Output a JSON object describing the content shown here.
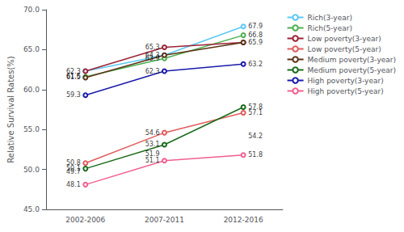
{
  "chart_data": {
    "type": "line",
    "categories": [
      "2002-2006",
      "2007-2011",
      "2012-2016"
    ],
    "series": [
      {
        "name": "Rich(3-year)",
        "color": "#5bc8f5",
        "values": [
          62.3,
          64.3,
          67.9
        ]
      },
      {
        "name": "Rich(5-year)",
        "color": "#4caf50",
        "values": [
          61.6,
          63.9,
          66.8
        ]
      },
      {
        "name": "Low poverty(3-year)",
        "color": "#9b2335",
        "values": [
          62.3,
          65.3,
          65.9
        ]
      },
      {
        "name": "Low poverty(5-year)",
        "color": "#e05c5c",
        "values": [
          50.8,
          54.6,
          57.1
        ]
      },
      {
        "name": "Medium poverty(3-year)",
        "color": "#5c3317",
        "values": [
          61.5,
          64.3,
          65.9
        ]
      },
      {
        "name": "Medium poverty(5-year)",
        "color": "#1a6b1a",
        "values": [
          50.1,
          53.1,
          57.8
        ]
      },
      {
        "name": "High poverty(3-year)",
        "color": "#1a1aaa",
        "values": [
          59.3,
          62.3,
          63.2
        ]
      },
      {
        "name": "High poverty(5-year)",
        "color": "#f06090",
        "values": [
          48.1,
          51.1,
          51.8
        ]
      }
    ],
    "annotations": [
      {
        "x": "2002-2006",
        "y": 62.3,
        "text": "62.3"
      },
      {
        "x": "2002-2006",
        "y": 61.6,
        "text": "61.6"
      },
      {
        "x": "2002-2006",
        "y": 61.5,
        "text": "61.5"
      },
      {
        "x": "2002-2006",
        "y": 59.3,
        "text": "59.3"
      },
      {
        "x": "2002-2006",
        "y": 50.8,
        "text": "50.8"
      },
      {
        "x": "2002-2006",
        "y": 50.1,
        "text": "50.1"
      },
      {
        "x": "2002-2006",
        "y": 49.7,
        "text": "49.7"
      },
      {
        "x": "2002-2006",
        "y": 48.1,
        "text": "48.1"
      },
      {
        "x": "2007-2011",
        "y": 65.3,
        "text": "65.3"
      },
      {
        "x": "2007-2011",
        "y": 64.3,
        "text": "64.3"
      },
      {
        "x": "2007-2011",
        "y": 63.9,
        "text": "63.9"
      },
      {
        "x": "2007-2011",
        "y": 62.3,
        "text": "62.3"
      },
      {
        "x": "2007-2011",
        "y": 54.6,
        "text": "54.6"
      },
      {
        "x": "2007-2011",
        "y": 53.1,
        "text": "53.1"
      },
      {
        "x": "2007-2011",
        "y": 51.9,
        "text": "51.9"
      },
      {
        "x": "2007-2011",
        "y": 51.1,
        "text": "51.1"
      },
      {
        "x": "2012-2016",
        "y": 67.9,
        "text": "67.9"
      },
      {
        "x": "2012-2016",
        "y": 66.8,
        "text": "66.8"
      },
      {
        "x": "2012-2016",
        "y": 65.9,
        "text": "65.9"
      },
      {
        "x": "2012-2016",
        "y": 63.2,
        "text": "63.2"
      },
      {
        "x": "2012-2016",
        "y": 57.8,
        "text": "57.8"
      },
      {
        "x": "2012-2016",
        "y": 57.1,
        "text": "57.1"
      },
      {
        "x": "2012-2016",
        "y": 54.2,
        "text": "54.2"
      },
      {
        "x": "2012-2016",
        "y": 51.8,
        "text": "51.8"
      }
    ],
    "ylabel": "Relative Survival Rates(%)",
    "ylim": [
      45.0,
      70.0
    ],
    "yticks": [
      {
        "value": 45,
        "label": "45.0"
      },
      {
        "value": 50,
        "label": "50.0"
      },
      {
        "value": 55,
        "label": "55.0"
      },
      {
        "value": 60,
        "label": "60.0"
      },
      {
        "value": 65,
        "label": "65.0"
      },
      {
        "value": 70,
        "label": "70.0"
      }
    ],
    "marker": "circle",
    "grid": false,
    "legend": "right"
  }
}
